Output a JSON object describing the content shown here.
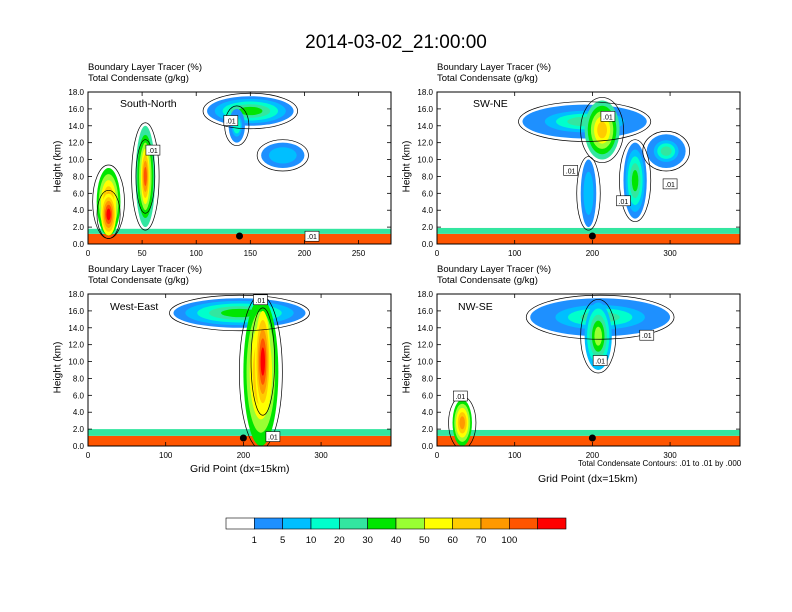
{
  "title": "2014-03-02_21:00:00",
  "colorbar": {
    "colors": [
      "#ffffff",
      "#1e90ff",
      "#00bfff",
      "#00ffcc",
      "#33e6a0",
      "#00e600",
      "#99ff33",
      "#ffff00",
      "#ffcc00",
      "#ff9900",
      "#ff5500",
      "#ff0000"
    ],
    "labels": [
      "1",
      "5",
      "10",
      "20",
      "30",
      "40",
      "50",
      "60",
      "70",
      "100"
    ]
  },
  "contour_note": "Total Condensate Contours: .01 to .01 by .000",
  "chart_data": [
    {
      "type": "heatmap",
      "panel": "South-North",
      "line1": "Boundary Layer Tracer    (%)",
      "line2": "Total Condensate   (g/kg)",
      "ylabel": "Height (km)",
      "xlabel": "",
      "xlim": [
        0,
        280
      ],
      "ylim": [
        0,
        18
      ],
      "xticks": [
        "0",
        "50",
        "100",
        "150",
        "200",
        "250"
      ],
      "xtick_values": [
        0,
        50,
        100,
        150,
        200,
        250
      ],
      "yticks": [
        "0.0",
        "2.0",
        "4.0",
        "6.0",
        "8.0",
        "10.0",
        "12.0",
        "14.0",
        "16.0",
        "18.0"
      ],
      "marker_x": 140,
      "contour_labels": [
        ".01",
        ".01",
        ".01"
      ],
      "contour_label_pos": [
        [
          60,
          11
        ],
        [
          132,
          14.5
        ],
        [
          207,
          0.8
        ]
      ],
      "blobs": [
        {
          "x": [
            0,
            280
          ],
          "y": [
            0,
            1.2
          ],
          "level": 10
        },
        {
          "x": [
            0,
            280
          ],
          "y": [
            1.2,
            1.8
          ],
          "level": 4
        },
        {
          "x": [
            8,
            30
          ],
          "y": [
            1,
            9
          ],
          "level": 9
        },
        {
          "x": [
            12,
            26
          ],
          "y": [
            1,
            6
          ],
          "level": 11
        },
        {
          "x": [
            44,
            62
          ],
          "y": [
            2,
            14
          ],
          "level": 8
        },
        {
          "x": [
            48,
            58
          ],
          "y": [
            4,
            12
          ],
          "level": 10
        },
        {
          "x": [
            110,
            190
          ],
          "y": [
            14,
            17.5
          ],
          "level": 5
        },
        {
          "x": [
            160,
            200
          ],
          "y": [
            9,
            12
          ],
          "level": 2
        },
        {
          "x": [
            130,
            145
          ],
          "y": [
            12,
            16
          ],
          "level": 3
        }
      ]
    },
    {
      "type": "heatmap",
      "panel": "SW-NE",
      "line1": "Boundary Layer Tracer    (%)",
      "line2": "Total Condensate   (g/kg)",
      "ylabel": "Height (km)",
      "xlabel": "",
      "xlim": [
        0,
        390
      ],
      "ylim": [
        0,
        18
      ],
      "xticks": [
        "0",
        "100",
        "200",
        "300"
      ],
      "xtick_values": [
        0,
        100,
        200,
        300
      ],
      "yticks": [
        "0.0",
        "2.0",
        "4.0",
        "6.0",
        "8.0",
        "10.0",
        "12.0",
        "14.0",
        "16.0",
        "18.0"
      ],
      "marker_x": 200,
      "contour_labels": [
        ".01",
        ".01",
        ".01",
        ".01"
      ],
      "contour_label_pos": [
        [
          172,
          8.6
        ],
        [
          220,
          15
        ],
        [
          240,
          5
        ],
        [
          300,
          7
        ]
      ],
      "blobs": [
        {
          "x": [
            0,
            390
          ],
          "y": [
            0,
            1.2
          ],
          "level": 10
        },
        {
          "x": [
            0,
            390
          ],
          "y": [
            1.2,
            1.9
          ],
          "level": 4
        },
        {
          "x": [
            110,
            270
          ],
          "y": [
            12.5,
            16.5
          ],
          "level": 4
        },
        {
          "x": [
            190,
            235
          ],
          "y": [
            10,
            17
          ],
          "level": 8
        },
        {
          "x": [
            240,
            270
          ],
          "y": [
            3,
            12
          ],
          "level": 5
        },
        {
          "x": [
            270,
            320
          ],
          "y": [
            9,
            13
          ],
          "level": 4
        },
        {
          "x": [
            185,
            205
          ],
          "y": [
            2,
            10
          ],
          "level": 2
        }
      ]
    },
    {
      "type": "heatmap",
      "panel": "West-East",
      "line1": "Boundary Layer Tracer    (%)",
      "line2": "Total Condensate   (g/kg)",
      "ylabel": "Height (km)",
      "xlabel": "Grid Point (dx=15km)",
      "xlim": [
        0,
        390
      ],
      "ylim": [
        0,
        18
      ],
      "xticks": [
        "0",
        "100",
        "200",
        "300"
      ],
      "xtick_values": [
        0,
        100,
        200,
        300
      ],
      "yticks": [
        "0.0",
        "2.0",
        "4.0",
        "6.0",
        "8.0",
        "10.0",
        "12.0",
        "14.0",
        "16.0",
        "18.0"
      ],
      "marker_x": 200,
      "contour_labels": [
        ".01",
        ".01"
      ],
      "contour_label_pos": [
        [
          222,
          17.2
        ],
        [
          238,
          1
        ]
      ],
      "blobs": [
        {
          "x": [
            0,
            390
          ],
          "y": [
            0,
            1.2
          ],
          "level": 10
        },
        {
          "x": [
            0,
            390
          ],
          "y": [
            1.2,
            2
          ],
          "level": 4
        },
        {
          "x": [
            110,
            280
          ],
          "y": [
            14,
            17.5
          ],
          "level": 5
        },
        {
          "x": [
            200,
            245
          ],
          "y": [
            0,
            17.5
          ],
          "level": 9
        },
        {
          "x": [
            215,
            235
          ],
          "y": [
            4,
            16
          ],
          "level": 11
        }
      ]
    },
    {
      "type": "heatmap",
      "panel": "NW-SE",
      "line1": "Boundary Layer Tracer    (%)",
      "line2": "Total Condensate   (g/kg)",
      "ylabel": "Height (km)",
      "xlabel": "Grid Point (dx=15km)",
      "xlim": [
        0,
        390
      ],
      "ylim": [
        0,
        18
      ],
      "xticks": [
        "0",
        "100",
        "200",
        "300"
      ],
      "xtick_values": [
        0,
        100,
        200,
        300
      ],
      "yticks": [
        "0.0",
        "2.0",
        "4.0",
        "6.0",
        "8.0",
        "10.0",
        "12.0",
        "14.0",
        "16.0",
        "18.0"
      ],
      "marker_x": 200,
      "contour_labels": [
        ".01",
        ".01",
        ".01"
      ],
      "contour_label_pos": [
        [
          210,
          10
        ],
        [
          270,
          13
        ],
        [
          30,
          5.8
        ]
      ],
      "blobs": [
        {
          "x": [
            0,
            390
          ],
          "y": [
            0,
            1.2
          ],
          "level": 10
        },
        {
          "x": [
            0,
            390
          ],
          "y": [
            1.2,
            1.9
          ],
          "level": 4
        },
        {
          "x": [
            20,
            45
          ],
          "y": [
            0,
            5.5
          ],
          "level": 9
        },
        {
          "x": [
            120,
            300
          ],
          "y": [
            13,
            17.5
          ],
          "level": 4
        },
        {
          "x": [
            190,
            225
          ],
          "y": [
            9,
            17
          ],
          "level": 6
        }
      ]
    }
  ]
}
